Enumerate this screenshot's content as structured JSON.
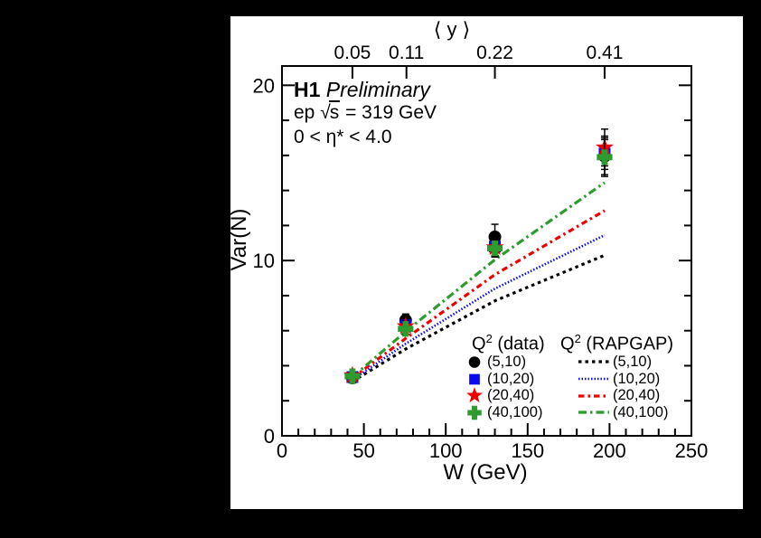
{
  "page": {
    "background": "#000000",
    "canvas_background": "#ffffff"
  },
  "annotations": {
    "h1": "H1",
    "preliminary": "Preliminary",
    "ep": "ep ",
    "sqrt_symbol": "√",
    "sqrt_arg": "s",
    "energy": " = 319 GeV",
    "eta": "0 < η* < 4.0"
  },
  "legend": {
    "q_base": "Q",
    "q_exp": "2",
    "data_suffix": " (data)",
    "rapgap_suffix": " (RAPGAP)",
    "data_items": [
      "(5,10)",
      "(10,20)",
      "(20,40)",
      "(40,100)"
    ],
    "rapgap_items": [
      "(5,10)",
      "(10,20)",
      "(20,40)",
      "(40,100)"
    ]
  },
  "chart_data": {
    "type": "scatter",
    "title": "H1 Preliminary, ep sqrt(s) = 319 GeV, 0 < eta* < 4.0",
    "xlabel": "W (GeV)",
    "ylabel": "Var(N)",
    "x_range": [
      0,
      250
    ],
    "y_range": [
      0,
      21.1
    ],
    "grid": false,
    "x_major_ticks": [
      0,
      50,
      100,
      150,
      200,
      250
    ],
    "x_tick_labels": [
      "0",
      "50",
      "100",
      "150",
      "200",
      "250"
    ],
    "x_minor_step": 10,
    "y_major_ticks": [
      0,
      10,
      20
    ],
    "y_tick_labels": [
      "0",
      "10",
      "20"
    ],
    "y_minor_step": 2,
    "top_axis": {
      "label": "⟨ y ⟩",
      "ticks": [
        {
          "x": 43,
          "label": "0.05"
        },
        {
          "x": 76,
          "label": "0.11"
        },
        {
          "x": 130,
          "label": "0.22"
        },
        {
          "x": 197,
          "label": "0.41"
        }
      ]
    },
    "data_series": [
      {
        "name": "(5,10)",
        "marker": "circle",
        "color": "#000000",
        "x": [
          43,
          75.5,
          130,
          197
        ],
        "y": [
          3.3,
          6.6,
          11.35,
          15.95
        ],
        "yerr": [
          0.15,
          0.35,
          0.72,
          1.15
        ]
      },
      {
        "name": "(10,20)",
        "marker": "square",
        "color": "#0a0af0",
        "x": [
          43,
          75.5,
          130,
          197
        ],
        "y": [
          3.35,
          6.3,
          10.8,
          16.1
        ],
        "yerr": [
          0.15,
          0.3,
          0.5,
          0.9
        ]
      },
      {
        "name": "(20,40)",
        "marker": "star",
        "color": "#ee0000",
        "x": [
          43,
          75.5,
          130,
          197
        ],
        "y": [
          3.45,
          6.25,
          10.75,
          16.45
        ],
        "yerr": [
          0.15,
          0.3,
          0.5,
          1.05
        ]
      },
      {
        "name": "(40,100)",
        "marker": "plus",
        "color": "#2e9b2e",
        "x": [
          43,
          75.5,
          130,
          197
        ],
        "y": [
          3.4,
          6.1,
          10.7,
          15.9
        ],
        "yerr": [
          0.15,
          0.3,
          0.5,
          1.0
        ]
      }
    ],
    "model_series": [
      {
        "name": "(5,10)",
        "color": "#000000",
        "dash": "3.5 4",
        "x": [
          43,
          75.5,
          130,
          197
        ],
        "y": [
          3.1,
          4.95,
          7.7,
          10.3
        ]
      },
      {
        "name": "(10,20)",
        "color": "#0a0af0",
        "dash": "1.5 2",
        "x": [
          43,
          75.5,
          130,
          197
        ],
        "y": [
          3.2,
          5.25,
          8.4,
          11.45
        ]
      },
      {
        "name": "(20,40)",
        "color": "#ee0000",
        "dash": "6.5 4 2.5 4",
        "x": [
          43,
          75.5,
          130,
          197
        ],
        "y": [
          3.3,
          5.55,
          9.2,
          12.85
        ]
      },
      {
        "name": "(40,100)",
        "color": "#2e9b2e",
        "dash": "9 4 2.5 4",
        "x": [
          43,
          75.5,
          130,
          197
        ],
        "y": [
          3.35,
          5.95,
          10.05,
          14.45
        ]
      }
    ]
  }
}
